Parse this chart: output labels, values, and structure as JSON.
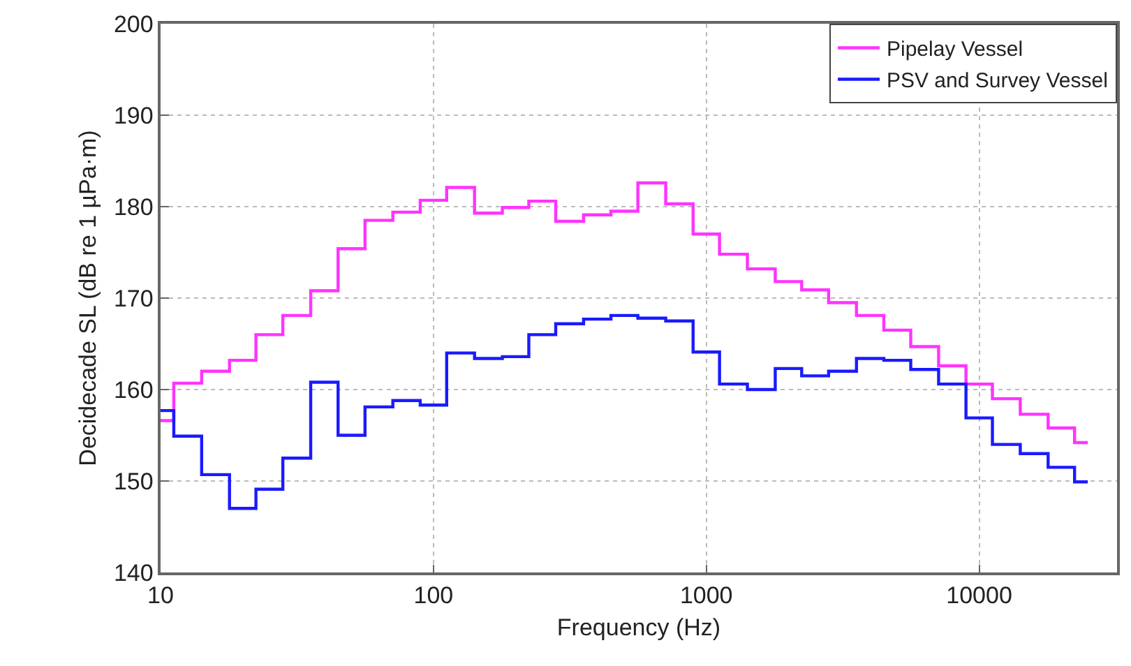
{
  "chart_data": {
    "type": "step",
    "xlabel": "Frequency (Hz)",
    "ylabel": "Decidecade SL (dB re 1 µPa·m)",
    "x": [
      10,
      12.5,
      16,
      20,
      25,
      31.5,
      40,
      50,
      63,
      80,
      100,
      125,
      160,
      200,
      250,
      315,
      400,
      500,
      630,
      800,
      1000,
      1250,
      1600,
      2000,
      2500,
      3150,
      4000,
      5000,
      6300,
      8000,
      10000,
      12500,
      16000,
      20000,
      25000
    ],
    "series": [
      {
        "name": "Pipelay Vessel",
        "color": "#ff33ff",
        "values": [
          156.6,
          160.7,
          162.0,
          163.2,
          166.0,
          168.1,
          170.8,
          175.4,
          178.5,
          179.4,
          180.7,
          182.1,
          179.3,
          179.9,
          180.6,
          178.4,
          179.1,
          179.5,
          182.6,
          180.3,
          177.0,
          174.8,
          173.2,
          171.8,
          170.9,
          169.5,
          168.1,
          166.5,
          164.7,
          162.6,
          160.6,
          159.0,
          157.3,
          155.8,
          154.2
        ]
      },
      {
        "name": "PSV and Survey Vessel",
        "color": "#1a1aff",
        "values": [
          157.7,
          154.9,
          150.7,
          147.0,
          149.1,
          152.5,
          160.8,
          155.0,
          158.1,
          158.8,
          158.3,
          164.0,
          163.4,
          163.6,
          166.0,
          167.2,
          167.7,
          168.1,
          167.8,
          167.5,
          164.1,
          160.6,
          160.0,
          162.3,
          161.5,
          162.0,
          163.4,
          163.2,
          162.2,
          160.6,
          156.9,
          154.0,
          153.0,
          151.5,
          149.9
        ]
      }
    ],
    "log": "x",
    "xlim": [
      10,
      32000
    ],
    "xticks": [
      10,
      100,
      1000,
      10000
    ],
    "ylim": [
      140,
      200
    ],
    "yticks": [
      140,
      150,
      160,
      170,
      180,
      190,
      200
    ],
    "grid": true,
    "legend": "top right",
    "line_style": "solid",
    "marker": "none"
  }
}
